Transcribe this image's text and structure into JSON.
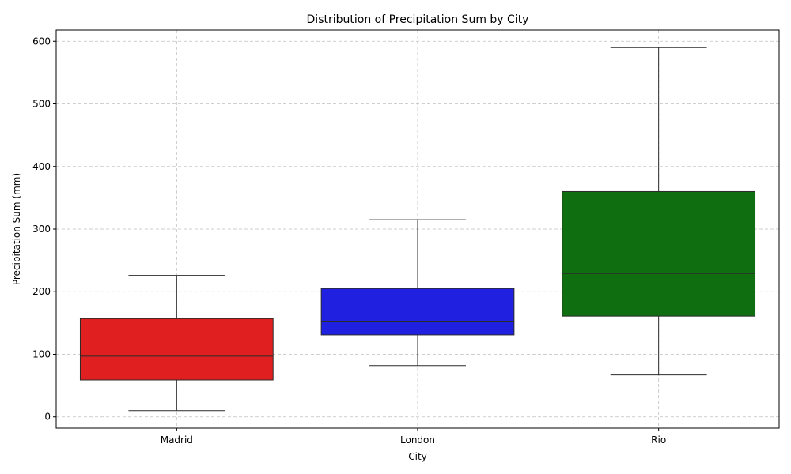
{
  "chart_data": {
    "type": "box",
    "title": "Distribution of Precipitation Sum by City",
    "xlabel": "City",
    "ylabel": "Precipitation Sum (mm)",
    "ylim": [
      -18,
      618
    ],
    "yticks": [
      0,
      100,
      200,
      300,
      400,
      500,
      600
    ],
    "grid": true,
    "categories": [
      "Madrid",
      "London",
      "Rio"
    ],
    "boxes": [
      {
        "category": "Madrid",
        "whisker_low": 10,
        "q1": 59,
        "median": 97,
        "q3": 157,
        "whisker_high": 226,
        "color": "#e02020"
      },
      {
        "category": "London",
        "whisker_low": 82,
        "q1": 131,
        "median": 153,
        "q3": 205,
        "whisker_high": 315,
        "color": "#2020e0"
      },
      {
        "category": "Rio",
        "whisker_low": 67,
        "q1": 161,
        "median": 229,
        "q3": 360,
        "whisker_high": 590,
        "color": "#0f6e0f"
      }
    ]
  }
}
